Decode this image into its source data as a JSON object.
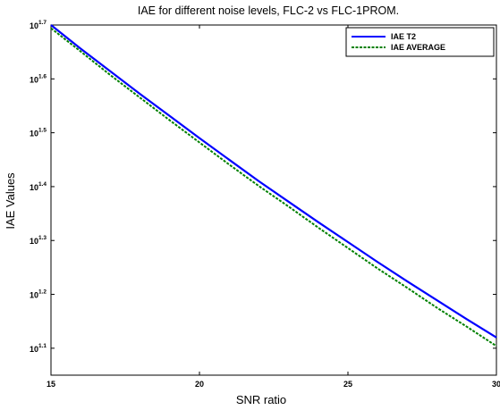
{
  "chart_data": {
    "type": "line",
    "title": "IAE for different noise levels, FLC-2 vs FLC-1PROM.",
    "xlabel": "SNR ratio",
    "ylabel": "IAE Values",
    "xlim": [
      15,
      30
    ],
    "ylim_log10": [
      1.05,
      1.7
    ],
    "yscale": "log",
    "x_ticks": [
      {
        "value": 15,
        "label": "15"
      },
      {
        "value": 20,
        "label": "20"
      },
      {
        "value": 25,
        "label": "25"
      },
      {
        "value": 30,
        "label": "30"
      }
    ],
    "y_ticks": [
      {
        "log10": 1.1,
        "base": "10",
        "exp": "1.1"
      },
      {
        "log10": 1.2,
        "base": "10",
        "exp": "1.2"
      },
      {
        "log10": 1.3,
        "base": "10",
        "exp": "1.3"
      },
      {
        "log10": 1.4,
        "base": "10",
        "exp": "1.4"
      },
      {
        "log10": 1.5,
        "base": "10",
        "exp": "1.5"
      },
      {
        "log10": 1.6,
        "base": "10",
        "exp": "1.6"
      },
      {
        "log10": 1.7,
        "base": "10",
        "exp": "1.7"
      }
    ],
    "grid": false,
    "legend_position": "top-right",
    "series": [
      {
        "name": "IAE T2",
        "color": "#0000ff",
        "style": "solid",
        "x": [
          15,
          16,
          17,
          18,
          19,
          20,
          21,
          22,
          23,
          24,
          25,
          26,
          27,
          28,
          29,
          30
        ],
        "log10_y": [
          1.7,
          1.656,
          1.614,
          1.572,
          1.531,
          1.49,
          1.45,
          1.41,
          1.372,
          1.334,
          1.297,
          1.26,
          1.224,
          1.189,
          1.154,
          1.12
        ]
      },
      {
        "name": "IAE AVERAGE",
        "color": "#008000",
        "style": "dashed",
        "x": [
          15,
          16,
          17,
          18,
          19,
          20,
          21,
          22,
          23,
          24,
          25,
          26,
          27,
          28,
          29,
          30
        ],
        "log10_y": [
          1.694,
          1.651,
          1.607,
          1.565,
          1.523,
          1.482,
          1.441,
          1.401,
          1.363,
          1.324,
          1.286,
          1.248,
          1.212,
          1.175,
          1.14,
          1.104
        ]
      }
    ]
  }
}
